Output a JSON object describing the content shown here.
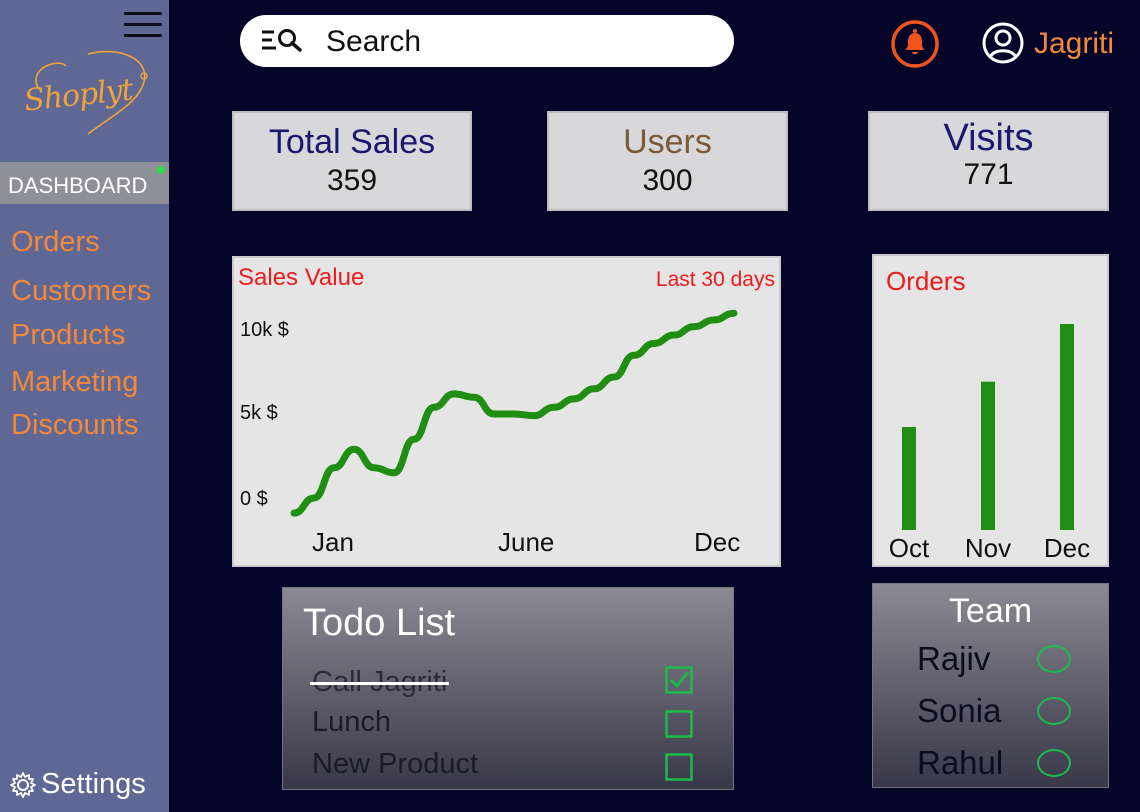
{
  "sidebar": {
    "logo_text": "Shoplyt",
    "dashboard_label": "DASHBOARD",
    "nav_items": [
      "Orders",
      "Customers",
      "Products",
      "Marketing",
      "Discounts"
    ],
    "settings_label": "Settings"
  },
  "header": {
    "search_text": "Search",
    "user_name": "Jagriti"
  },
  "stats": [
    {
      "title": "Total Sales",
      "value": "359",
      "color": "#1a1870"
    },
    {
      "title": "Users",
      "value": "300",
      "color": "#7a5a3a"
    },
    {
      "title": "Visits",
      "value": "771",
      "color": "#1a1870"
    }
  ],
  "colors": {
    "sidebar_bg": "#5f6894",
    "accent_orange": "#f3883a",
    "bell": "#f0541c",
    "chart_green": "#1f8e12",
    "chart_title_red": "#ee1b1b"
  },
  "chart_data": [
    {
      "type": "line",
      "title": "Sales Value",
      "subtitle": "Last 30 days",
      "y_ticks": [
        "10k $",
        "5k $",
        "0 $"
      ],
      "x_ticks": [
        "Jan",
        "June",
        "Dec"
      ],
      "ylim": [
        0,
        10000
      ],
      "x": [
        0,
        0.5,
        1,
        1.5,
        2,
        2.5,
        3,
        3.5,
        4,
        4.5,
        5,
        5.5,
        6,
        6.5,
        7,
        7.5,
        8,
        8.5,
        9,
        9.5,
        10,
        10.5,
        11
      ],
      "y": [
        -900,
        0,
        1800,
        2900,
        1800,
        1500,
        3500,
        5400,
        6200,
        6000,
        5000,
        5000,
        4900,
        5400,
        5900,
        6500,
        7200,
        8500,
        9200,
        9700,
        10200,
        10600,
        11000
      ]
    },
    {
      "type": "bar",
      "title": "Orders",
      "categories": [
        "Oct",
        "Nov",
        "Dec"
      ],
      "values": [
        50,
        72,
        100
      ],
      "ylim": [
        0,
        100
      ]
    }
  ],
  "todo": {
    "title": "Todo List",
    "items": [
      {
        "label": "Call Jagriti",
        "done": true
      },
      {
        "label": "Lunch",
        "done": false
      },
      {
        "label": "New Product",
        "done": false
      }
    ]
  },
  "team": {
    "title": "Team",
    "members": [
      "Rajiv",
      "Sonia",
      "Rahul"
    ]
  }
}
